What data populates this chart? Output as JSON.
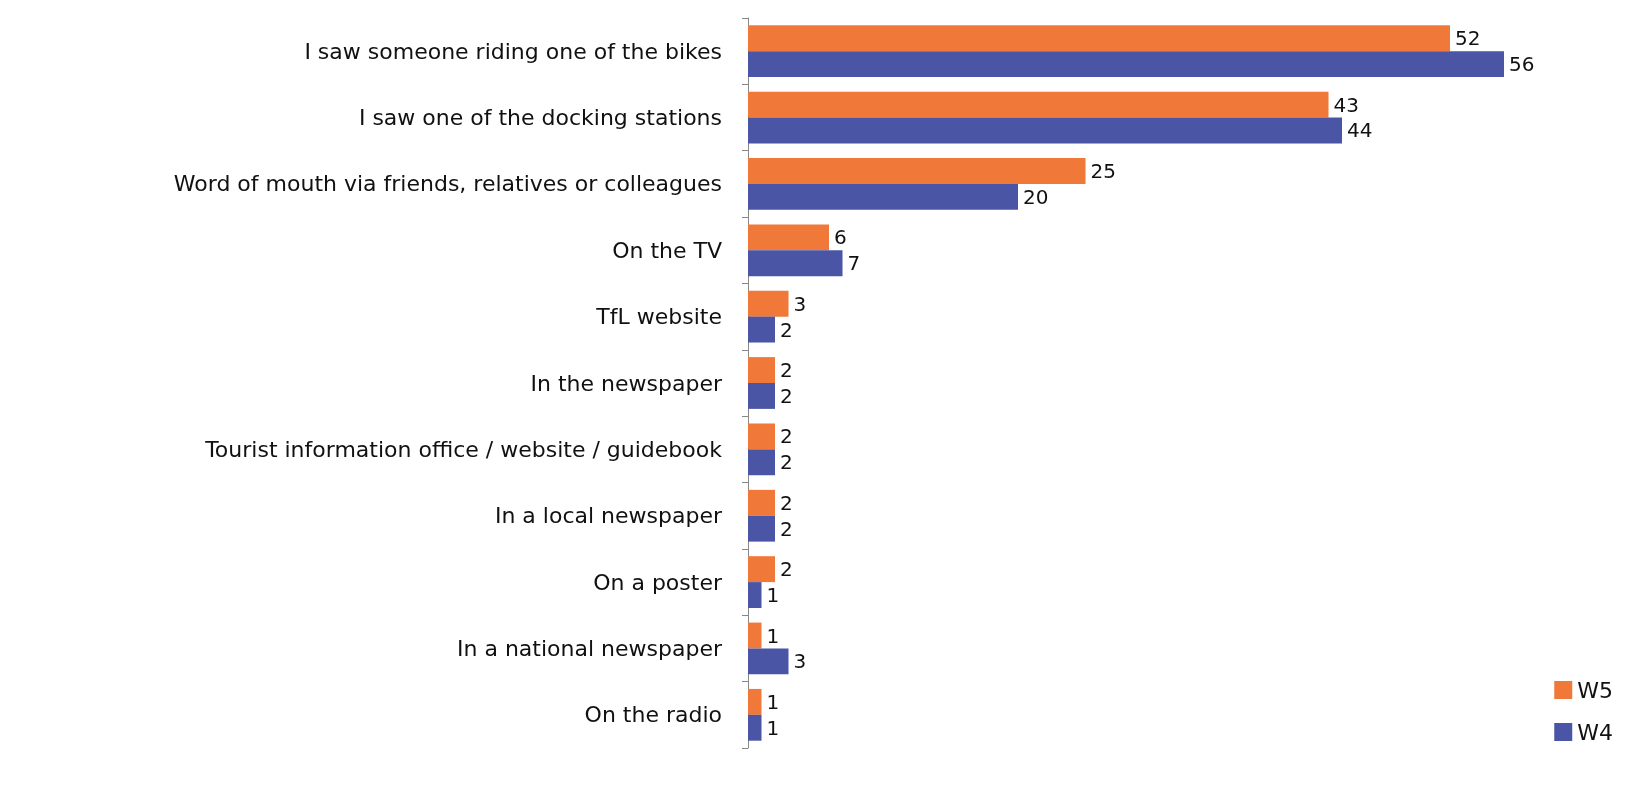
{
  "chart_data": {
    "type": "bar",
    "orientation": "horizontal",
    "data_labels": true,
    "legend": "bottom right",
    "categories": [
      "I saw someone riding one of the bikes",
      "I saw one of the docking stations",
      "Word of mouth via friends, relatives or colleagues",
      "On the TV",
      "TfL website",
      "In the newspaper",
      "Tourist information office / website / guidebook",
      "In a local newspaper",
      "On a poster",
      "In a national newspaper",
      "On the radio"
    ],
    "series": [
      {
        "name": "W5",
        "color": "#f07838",
        "values": [
          52,
          43,
          25,
          6,
          3,
          2,
          2,
          2,
          2,
          1,
          1
        ]
      },
      {
        "name": "W4",
        "color": "#4a55a6",
        "values": [
          56,
          44,
          20,
          7,
          2,
          2,
          2,
          2,
          1,
          3,
          1
        ]
      }
    ]
  }
}
